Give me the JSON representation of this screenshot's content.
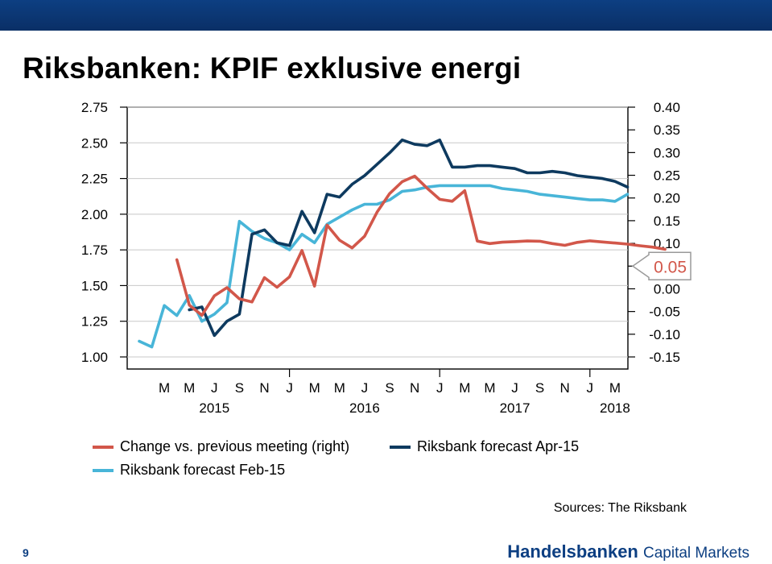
{
  "header": {
    "title": "Riksbanken: KPIF exklusive energi"
  },
  "colors": {
    "band": "#0d3f82",
    "red": "#d2574a",
    "navy": "#0e3a5f",
    "cyan": "#48b5d8",
    "callout": "#d2574a"
  },
  "chart_data": {
    "type": "line",
    "left_axis": {
      "ticks": [
        "2.75",
        "2.50",
        "2.25",
        "2.00",
        "1.75",
        "1.50",
        "1.25",
        "1.00"
      ],
      "ylim": [
        1.0,
        2.75
      ]
    },
    "right_axis": {
      "ticks": [
        "0.40",
        "0.35",
        "0.30",
        "0.25",
        "0.20",
        "0.15",
        "0.10",
        "0.05",
        "0.00",
        "-0.05",
        "-0.10",
        "-0.15"
      ],
      "ylim": [
        -0.15,
        0.4
      ]
    },
    "grid": "horizontal",
    "month_labels": [
      "M",
      "M",
      "J",
      "S",
      "N",
      "J",
      "M",
      "M",
      "J",
      "S",
      "N",
      "J",
      "M",
      "M",
      "J",
      "S",
      "N",
      "J",
      "M"
    ],
    "year_labels": [
      "2015",
      "2016",
      "2017",
      "2018"
    ],
    "callout": {
      "value": "0.05",
      "axis": "right"
    },
    "series": [
      {
        "name": "Change vs. previous meeting (right)",
        "axis": "right",
        "color": "#d2574a",
        "start_month": 4,
        "values": [
          0.0641,
          -0.0359,
          -0.0582,
          -0.0154,
          0.0026,
          -0.0221,
          -0.029,
          0.0246,
          0.0034,
          0.0264,
          0.0844,
          0.0059,
          0.1402,
          0.1071,
          0.09,
          0.1158,
          0.1689,
          0.2096,
          0.2359,
          0.2482,
          0.2214,
          0.197,
          0.1928,
          0.216,
          0.1051,
          0.0997,
          0.1026,
          0.1038,
          0.1053,
          0.1047,
          0.0996,
          0.0958,
          0.1023,
          0.1056,
          0.1032,
          0.1008,
          0.0984,
          0.0949,
          0.0918,
          0.087
        ]
      },
      {
        "name": "Riksbank forecast Apr-15",
        "axis": "left",
        "color": "#0e3a5f",
        "start_month": 5,
        "values": [
          1.33,
          1.35,
          1.15,
          1.25,
          1.3,
          1.86,
          1.89,
          1.8,
          1.78,
          2.02,
          1.87,
          2.14,
          2.12,
          2.21,
          2.27,
          2.35,
          2.43,
          2.52,
          2.49,
          2.48,
          2.52,
          2.33,
          2.33,
          2.34,
          2.34,
          2.33,
          2.32,
          2.29,
          2.29,
          2.3,
          2.29,
          2.27,
          2.26,
          2.25,
          2.23,
          2.19
        ]
      },
      {
        "name": "Riksbank forecast Feb-15",
        "axis": "left",
        "color": "#48b5d8",
        "start_month": 1,
        "values": [
          1.11,
          1.07,
          1.36,
          1.29,
          1.43,
          1.25,
          1.3,
          1.38,
          1.95,
          1.88,
          1.83,
          1.8,
          1.75,
          1.86,
          1.8,
          1.93,
          1.98,
          2.03,
          2.07,
          2.07,
          2.1,
          2.16,
          2.17,
          2.19,
          2.2,
          2.2,
          2.2,
          2.2,
          2.2,
          2.18,
          2.17,
          2.16,
          2.14,
          2.13,
          2.12,
          2.11,
          2.1,
          2.1,
          2.09,
          2.14
        ]
      }
    ]
  },
  "legend": [
    {
      "label": "Change vs. previous meeting (right)",
      "color": "#d2574a"
    },
    {
      "label": "Riksbank forecast Apr-15",
      "color": "#0e3a5f"
    },
    {
      "label": "Riksbank forecast Feb-15",
      "color": "#48b5d8"
    }
  ],
  "footer": {
    "sources": "Sources: The Riksbank",
    "page_number": "9",
    "brand_strong": "Handelsbanken",
    "brand_rest": "Capital Markets"
  }
}
